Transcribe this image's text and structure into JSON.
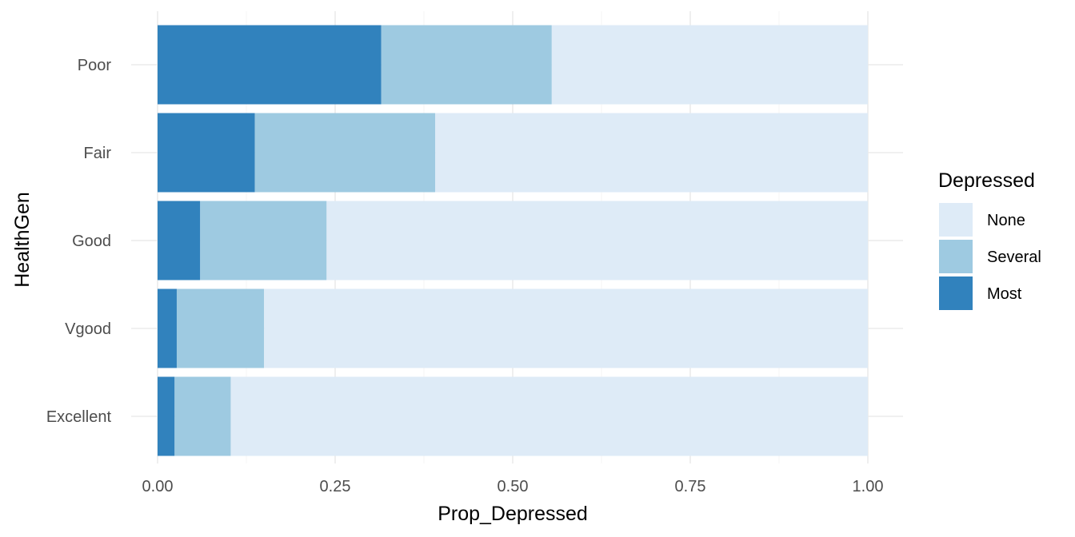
{
  "chart_data": {
    "type": "bar",
    "orientation": "horizontal",
    "stacked": true,
    "categories": [
      "Excellent",
      "Vgood",
      "Good",
      "Fair",
      "Poor"
    ],
    "series": [
      {
        "name": "None",
        "values": [
          0.897,
          0.85,
          0.762,
          0.609,
          0.445
        ],
        "color": "#deebf7"
      },
      {
        "name": "Several",
        "values": [
          0.079,
          0.123,
          0.178,
          0.254,
          0.24
        ],
        "color": "#9ecae1"
      },
      {
        "name": "Most",
        "values": [
          0.024,
          0.027,
          0.06,
          0.137,
          0.315
        ],
        "color": "#3182bd"
      }
    ],
    "stack_order_from_zero": [
      "Most",
      "Several",
      "None"
    ],
    "xlabel": "Prop_Depressed",
    "ylabel": "HealthGen",
    "xlim": [
      0,
      1
    ],
    "xticks": [
      0,
      0.25,
      0.5,
      0.75,
      1
    ],
    "xtick_labels": [
      "0.00",
      "0.25",
      "0.50",
      "0.75",
      "1.00"
    ],
    "grid": true,
    "legend": {
      "title": "Depressed",
      "position": "right",
      "entries": [
        "None",
        "Several",
        "Most"
      ]
    }
  }
}
